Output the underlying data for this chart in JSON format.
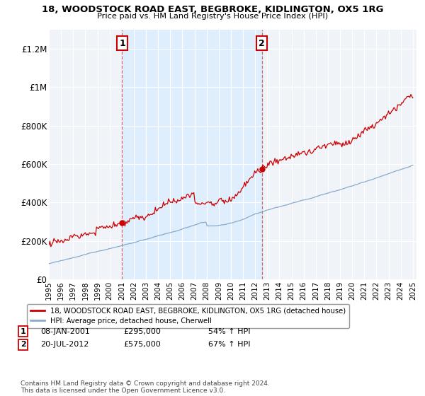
{
  "title": "18, WOODSTOCK ROAD EAST, BEGBROKE, KIDLINGTON, OX5 1RG",
  "subtitle": "Price paid vs. HM Land Registry's House Price Index (HPI)",
  "ylim": [
    0,
    1300000
  ],
  "yticks": [
    0,
    200000,
    400000,
    600000,
    800000,
    1000000,
    1200000
  ],
  "ytick_labels": [
    "£0",
    "£200K",
    "£400K",
    "£600K",
    "£800K",
    "£1M",
    "£1.2M"
  ],
  "sale1_date": 2001.04,
  "sale1_price": 295000,
  "sale2_date": 2012.55,
  "sale2_price": 575000,
  "line1_color": "#cc0000",
  "line2_color": "#88aacc",
  "shade_color": "#ddeeff",
  "bg_color": "#f0f4f8",
  "legend1_label": "18, WOODSTOCK ROAD EAST, BEGBROKE, KIDLINGTON, OX5 1RG (detached house)",
  "legend2_label": "HPI: Average price, detached house, Cherwell",
  "annotation1": "08-JAN-2001",
  "annotation1_price": "£295,000",
  "annotation1_hpi": "54% ↑ HPI",
  "annotation2": "20-JUL-2012",
  "annotation2_price": "£575,000",
  "annotation2_hpi": "67% ↑ HPI",
  "footer": "Contains HM Land Registry data © Crown copyright and database right 2024.\nThis data is licensed under the Open Government Licence v3.0.",
  "xmin": 1995.0,
  "xmax": 2025.3,
  "n_points": 360
}
